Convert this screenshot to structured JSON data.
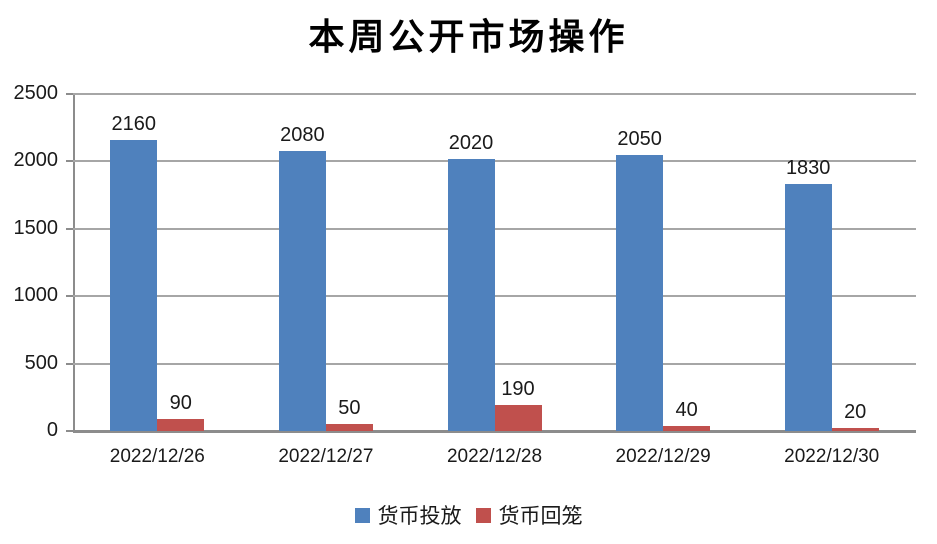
{
  "title": "本周公开市场操作",
  "chart_data": {
    "type": "bar",
    "title": "本周公开市场操作",
    "categories": [
      "2022/12/26",
      "2022/12/27",
      "2022/12/28",
      "2022/12/29",
      "2022/12/30"
    ],
    "series": [
      {
        "name": "货币投放",
        "color": "#4F81BD",
        "values": [
          2160,
          2080,
          2020,
          2050,
          1830
        ]
      },
      {
        "name": "货币回笼",
        "color": "#C0504D",
        "values": [
          90,
          50,
          190,
          40,
          20
        ]
      }
    ],
    "ylim": [
      0,
      2500
    ],
    "yticks": [
      0,
      500,
      1000,
      1500,
      2000,
      2500
    ],
    "ytick_labels": [
      "0",
      "500",
      "1000",
      "1500",
      "2000",
      "2500"
    ],
    "xlabel": "",
    "ylabel": "",
    "grid": true,
    "data_labels": true,
    "legend_position": "bottom",
    "colors": {
      "gridline": "#a6a6a6",
      "axis": "#8c8c8c",
      "text": "#1a1a1a",
      "background": "#ffffff"
    }
  }
}
